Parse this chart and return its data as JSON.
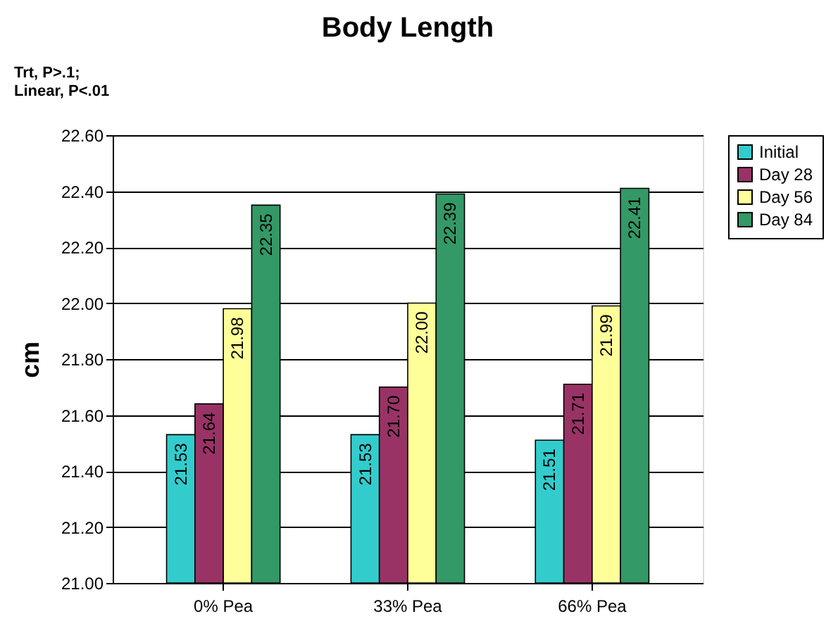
{
  "chart_data": {
    "type": "bar",
    "title": "Body Length",
    "ylabel": "cm",
    "categories": [
      "0% Pea",
      "33% Pea",
      "66% Pea"
    ],
    "series": [
      {
        "name": "Initial",
        "color": "#33cccc",
        "values": [
          21.53,
          21.53,
          21.51
        ],
        "value_labels": [
          "21.53",
          "21.53",
          "21.51"
        ]
      },
      {
        "name": "Day 28",
        "color": "#993366",
        "values": [
          21.64,
          21.7,
          21.71
        ],
        "value_labels": [
          "21.64",
          "21.70",
          "21.71"
        ]
      },
      {
        "name": "Day 56",
        "color": "#ffff99",
        "values": [
          21.98,
          22.0,
          21.99
        ],
        "value_labels": [
          "21.98",
          "22.00",
          "21.99"
        ]
      },
      {
        "name": "Day 84",
        "color": "#339966",
        "values": [
          22.35,
          22.39,
          22.41
        ],
        "value_labels": [
          "22.35",
          "22.39",
          "22.41"
        ]
      }
    ],
    "ylim": [
      21.0,
      22.6
    ],
    "yticks": [
      {
        "value": 21.0,
        "label": "21.00"
      },
      {
        "value": 21.2,
        "label": "21.20"
      },
      {
        "value": 21.4,
        "label": "21.40"
      },
      {
        "value": 21.6,
        "label": "21.60"
      },
      {
        "value": 21.8,
        "label": "21.80"
      },
      {
        "value": 22.0,
        "label": "22.00"
      },
      {
        "value": 22.2,
        "label": "22.20"
      },
      {
        "value": 22.4,
        "label": "22.40"
      },
      {
        "value": 22.6,
        "label": "22.60"
      }
    ],
    "grid": "y",
    "legend": "right",
    "annotations": [
      "Trt, P>.1;\nLinear, P<.01"
    ]
  }
}
